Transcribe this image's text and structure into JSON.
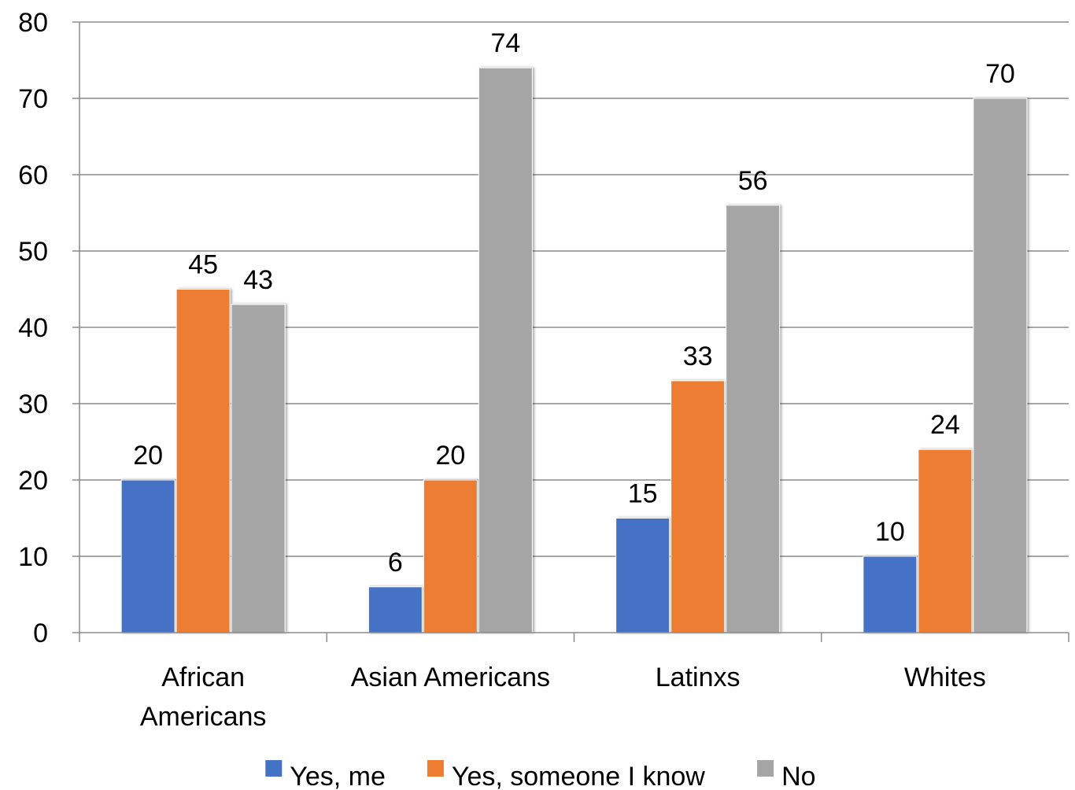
{
  "chart_data": {
    "type": "bar",
    "categories": [
      [
        "African",
        "Americans"
      ],
      [
        "Asian Americans"
      ],
      [
        "Latinxs"
      ],
      [
        "Whites"
      ]
    ],
    "series": [
      {
        "name": "Yes, me",
        "color": "#4472C4",
        "values": [
          20,
          6,
          15,
          10
        ]
      },
      {
        "name": "Yes, someone I know",
        "color": "#ED7D31",
        "values": [
          45,
          20,
          33,
          24
        ]
      },
      {
        "name": "No",
        "color": "#A5A5A5",
        "values": [
          43,
          74,
          56,
          70
        ]
      }
    ],
    "ylim": [
      0,
      80
    ],
    "yticks": [
      0,
      10,
      20,
      30,
      40,
      50,
      60,
      70,
      80
    ],
    "grid": true,
    "legend_position": "bottom",
    "data_labels": true
  }
}
